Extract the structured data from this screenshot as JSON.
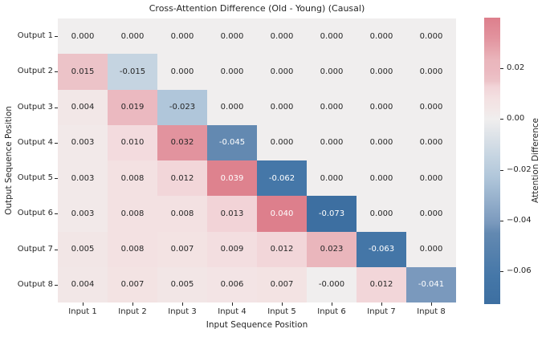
{
  "figure": {
    "background": "#ffffff"
  },
  "chart_data": {
    "type": "heatmap",
    "title": "Cross-Attention Difference (Old - Young) (Causal)",
    "xlabel": "Input Sequence Position",
    "ylabel": "Output Sequence Position",
    "colorbar_label": "Attention Difference",
    "x_tick_labels": [
      "Input 1",
      "Input 2",
      "Input 3",
      "Input 4",
      "Input 5",
      "Input 6",
      "Input 7",
      "Input 8"
    ],
    "y_tick_labels": [
      "Output 1",
      "Output 2",
      "Output 3",
      "Output 4",
      "Output 5",
      "Output 6",
      "Output 7",
      "Output 8"
    ],
    "cell_labels": [
      [
        "0.000",
        "0.000",
        "0.000",
        "0.000",
        "0.000",
        "0.000",
        "0.000",
        "0.000"
      ],
      [
        "0.015",
        "-0.015",
        "0.000",
        "0.000",
        "0.000",
        "0.000",
        "0.000",
        "0.000"
      ],
      [
        "0.004",
        "0.019",
        "-0.023",
        "0.000",
        "0.000",
        "0.000",
        "0.000",
        "0.000"
      ],
      [
        "0.003",
        "0.010",
        "0.032",
        "-0.045",
        "0.000",
        "0.000",
        "0.000",
        "0.000"
      ],
      [
        "0.003",
        "0.008",
        "0.012",
        "0.039",
        "-0.062",
        "0.000",
        "0.000",
        "0.000"
      ],
      [
        "0.003",
        "0.008",
        "0.008",
        "0.013",
        "0.040",
        "-0.073",
        "0.000",
        "0.000"
      ],
      [
        "0.005",
        "0.008",
        "0.007",
        "0.009",
        "0.012",
        "0.023",
        "-0.063",
        "0.000"
      ],
      [
        "0.004",
        "0.007",
        "0.005",
        "0.006",
        "0.007",
        "-0.000",
        "0.012",
        "-0.041"
      ]
    ],
    "vmin": -0.073,
    "vmax": 0.04,
    "center": 0,
    "colorbar_ticks": [
      {
        "value": 0.02,
        "label": "0.02"
      },
      {
        "value": 0.0,
        "label": "0.00"
      },
      {
        "value": -0.02,
        "label": "−0.02"
      },
      {
        "value": -0.04,
        "label": "−0.04"
      },
      {
        "value": -0.06,
        "label": "−0.06"
      }
    ],
    "colormap_stops": [
      {
        "value": -0.073,
        "color": "#3D6FA1"
      },
      {
        "value": -0.062,
        "color": "#4577A8"
      },
      {
        "value": -0.045,
        "color": "#6389B1"
      },
      {
        "value": -0.041,
        "color": "#7A99BD"
      },
      {
        "value": -0.023,
        "color": "#B0C6DA"
      },
      {
        "value": -0.015,
        "color": "#C5D4E1"
      },
      {
        "value": 0.0,
        "color": "#F0EEEE"
      },
      {
        "value": 0.004,
        "color": "#F2E7E7"
      },
      {
        "value": 0.008,
        "color": "#F3E1E2"
      },
      {
        "value": 0.013,
        "color": "#F2D3D7"
      },
      {
        "value": 0.015,
        "color": "#ECC3C8"
      },
      {
        "value": 0.019,
        "color": "#EBB9C0"
      },
      {
        "value": 0.023,
        "color": "#EAB6BC"
      },
      {
        "value": 0.032,
        "color": "#E2939E"
      },
      {
        "value": 0.04,
        "color": "#DD7F8C"
      }
    ],
    "annotation_text_dark": "#262626",
    "annotation_text_light": "#ffffff"
  }
}
